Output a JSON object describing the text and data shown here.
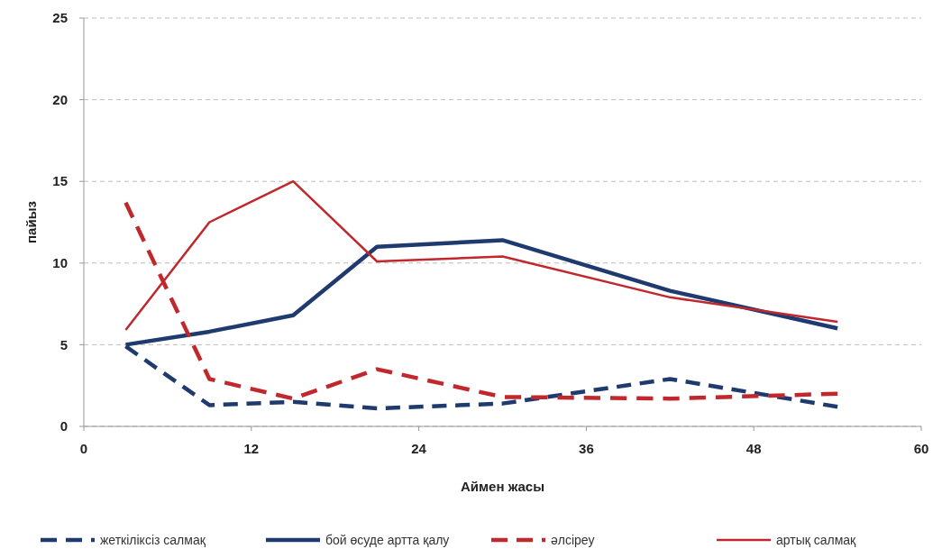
{
  "chart_data": {
    "type": "line",
    "xlabel": "Аймен жасы",
    "ylabel": "пайыз",
    "x": [
      3,
      9,
      15,
      21,
      30,
      42,
      54
    ],
    "xlim": [
      0,
      60
    ],
    "xticks": [
      0,
      12,
      24,
      36,
      48,
      60
    ],
    "ylim": [
      0,
      25
    ],
    "yticks": [
      0,
      5,
      10,
      15,
      20,
      25
    ],
    "grid": "y",
    "legend": "bottom",
    "marker": "none",
    "series": [
      {
        "name": "жеткіліксіз салмақ",
        "color": "#1f3a6e",
        "line_style": "dashed",
        "values": [
          4.9,
          1.3,
          1.5,
          1.1,
          1.4,
          2.9,
          1.2
        ]
      },
      {
        "name": "бой өсуде артта қалу",
        "color": "#1f3a6e",
        "line_style": "solid",
        "values": [
          5.0,
          5.8,
          6.8,
          11.0,
          11.4,
          8.3,
          6.0
        ]
      },
      {
        "name": "әлсіреу",
        "color": "#c0282d",
        "line_style": "dashed",
        "values": [
          13.7,
          2.9,
          1.7,
          3.5,
          1.8,
          1.7,
          2.0
        ]
      },
      {
        "name": "артық салмақ",
        "color": "#c0282d",
        "line_style": "solid",
        "values": [
          5.9,
          12.5,
          15.0,
          10.1,
          10.4,
          7.9,
          6.4
        ]
      }
    ]
  }
}
